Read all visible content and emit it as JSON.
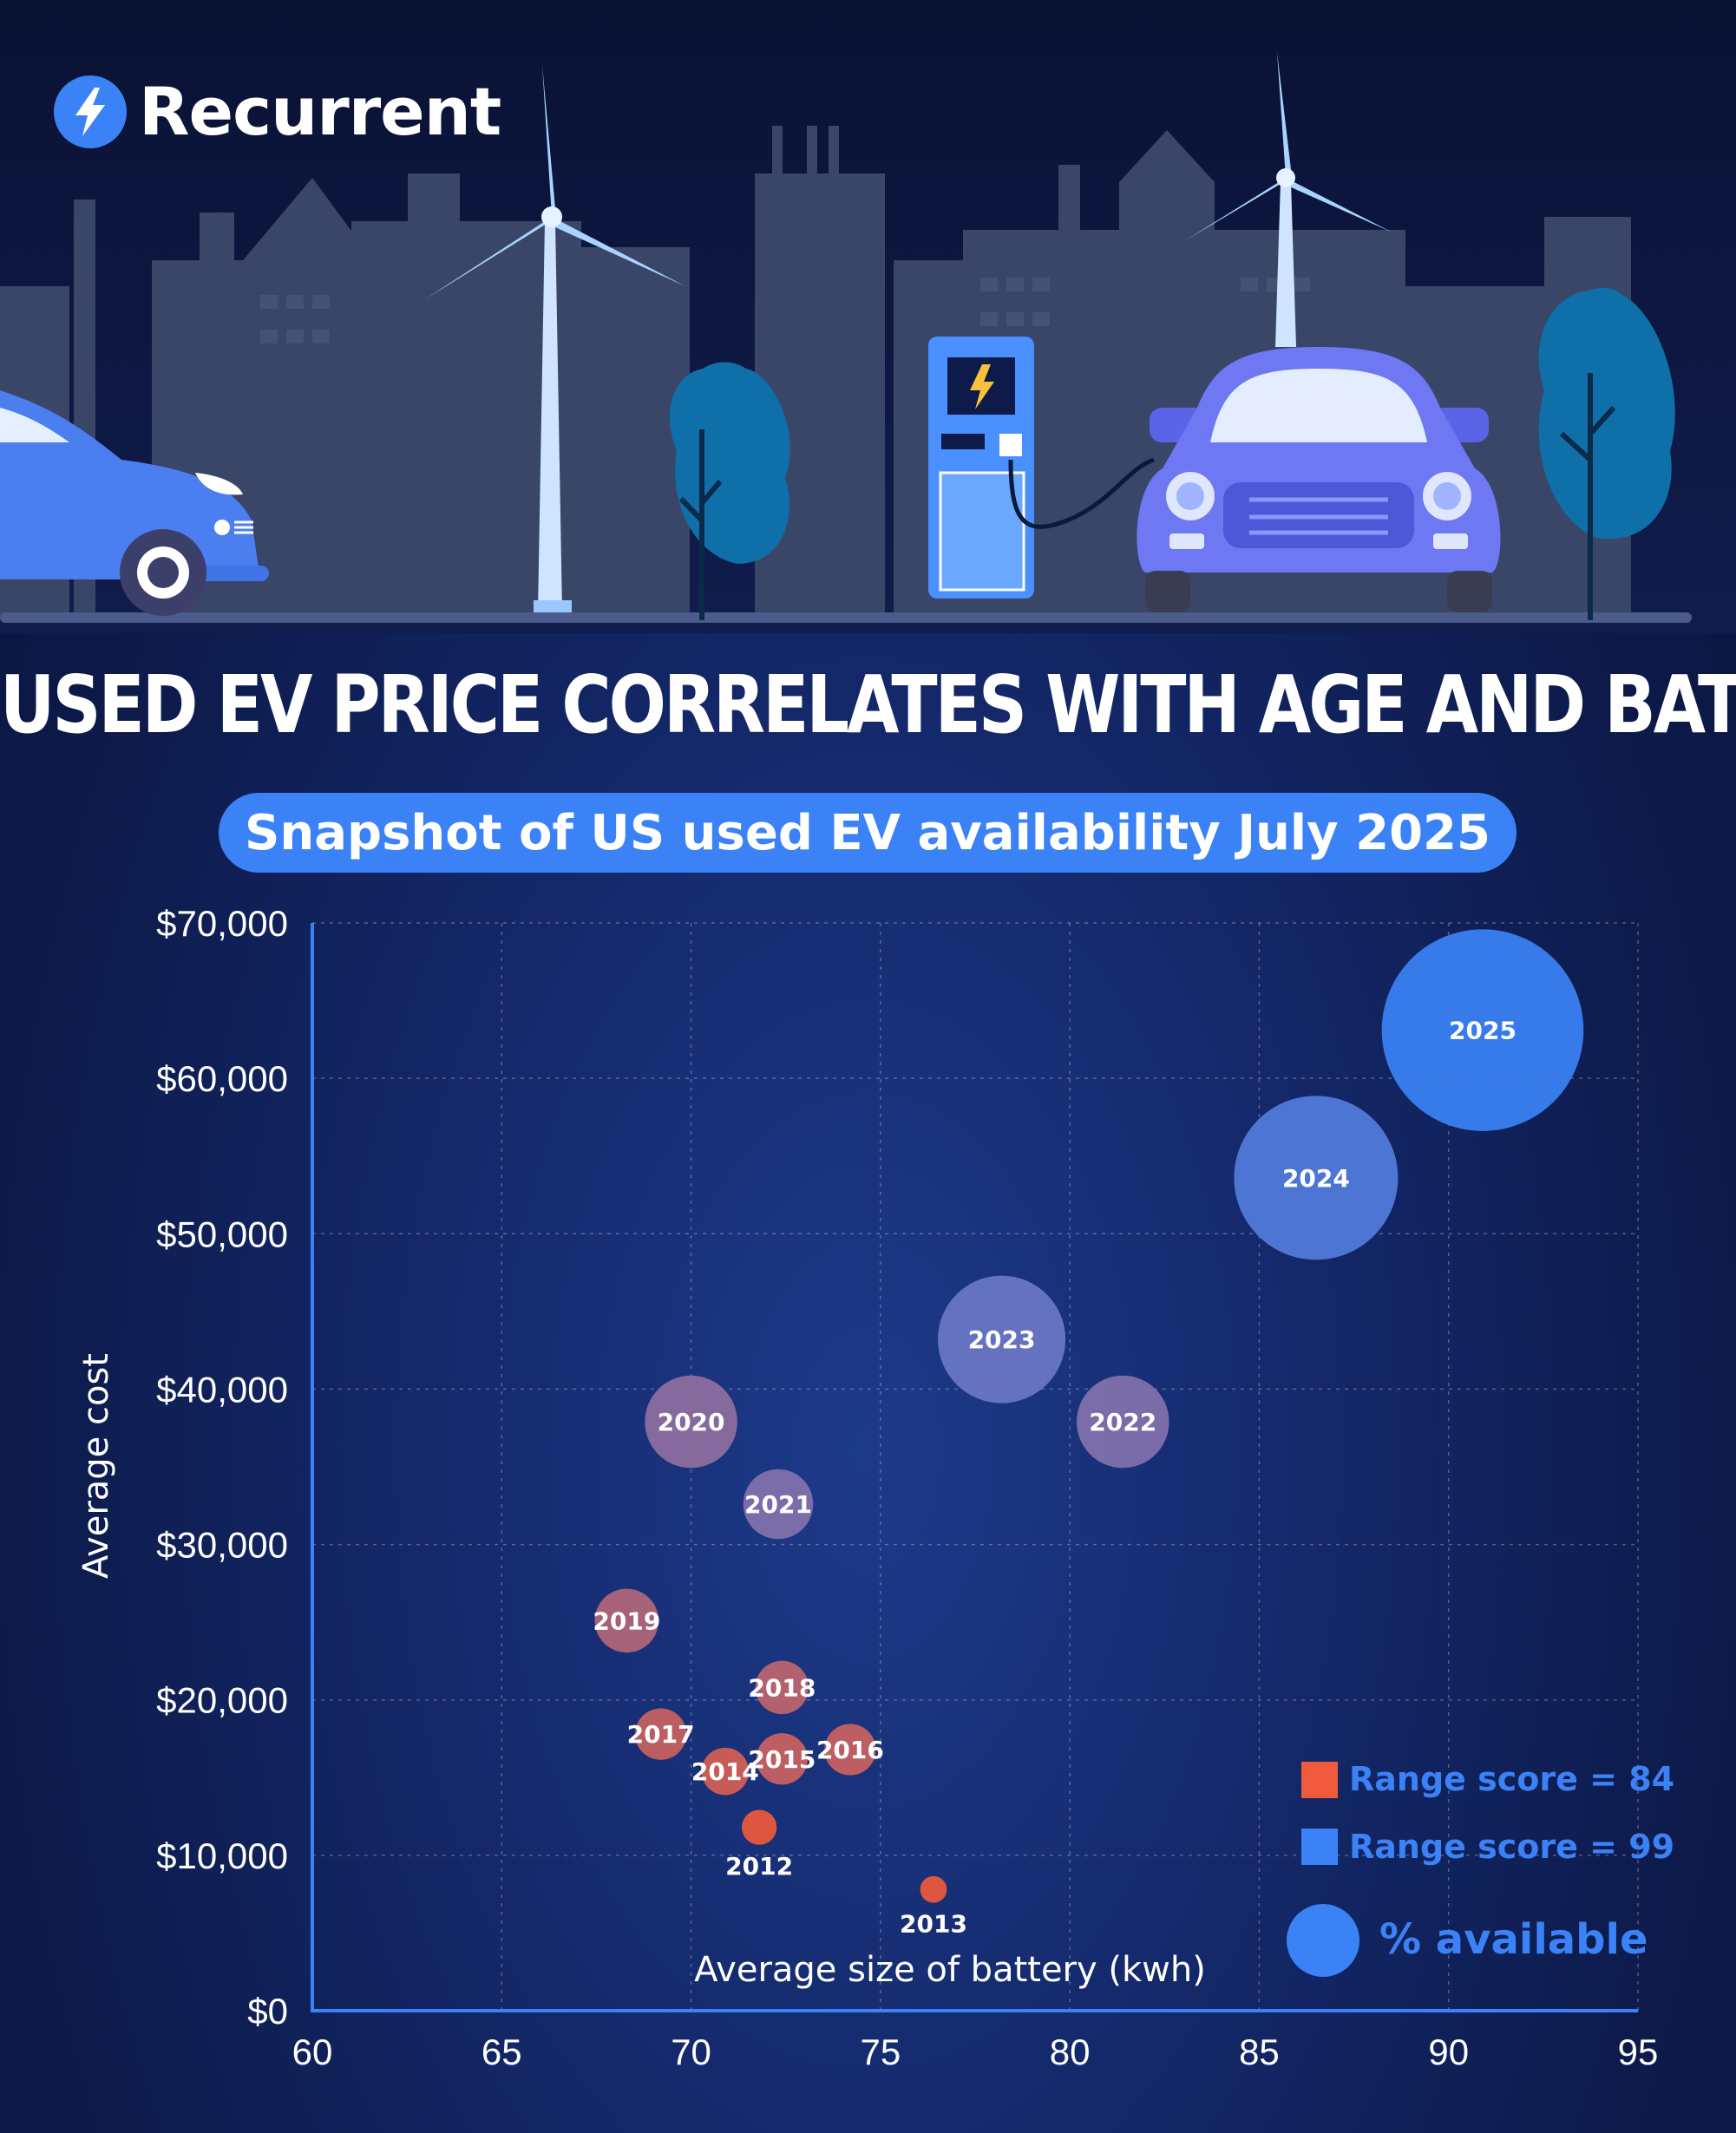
{
  "brand": {
    "name": "Recurrent"
  },
  "headline": "USED EV PRICE CORRELATES WITH AGE AND BATTERY SIZE",
  "subtitle": "Snapshot of US used EV availability July 2025",
  "colors": {
    "range84": "#ef5a3c",
    "range99": "#3b82f6",
    "axis": "#3b82f6"
  },
  "chart_data": {
    "type": "scatter",
    "title": "Snapshot of US used EV availability July 2025",
    "xlabel": "Average size of battery (kwh)",
    "ylabel": "Average cost",
    "xlim": [
      60,
      95
    ],
    "ylim": [
      0,
      70000
    ],
    "xticks": [
      "60",
      "65",
      "70",
      "75",
      "80",
      "85",
      "90",
      "95"
    ],
    "yticks": [
      "$0",
      "$10,000",
      "$20,000",
      "$30,000",
      "$40,000",
      "$50,000",
      "$60,000",
      "$70,000"
    ],
    "grid": true,
    "legend": {
      "placement": "bottom-right",
      "entries": [
        {
          "label": "Range score = 84",
          "color": "#ef5a3c"
        },
        {
          "label": "Range score = 99",
          "color": "#3b82f6"
        }
      ],
      "size_label": "% available"
    },
    "points": [
      {
        "label": "2012",
        "x": 71.8,
        "y": 11800,
        "availability": 0.6,
        "range_score": 84
      },
      {
        "label": "2013",
        "x": 76.4,
        "y": 7800,
        "availability": 0.35,
        "range_score": 84
      },
      {
        "label": "2014",
        "x": 70.9,
        "y": 15400,
        "availability": 1.1,
        "range_score": 86
      },
      {
        "label": "2015",
        "x": 72.4,
        "y": 16200,
        "availability": 1.3,
        "range_score": 87
      },
      {
        "label": "2016",
        "x": 74.2,
        "y": 16800,
        "availability": 1.3,
        "range_score": 87
      },
      {
        "label": "2017",
        "x": 69.2,
        "y": 17800,
        "availability": 1.3,
        "range_score": 87
      },
      {
        "label": "2018",
        "x": 72.4,
        "y": 20800,
        "availability": 1.4,
        "range_score": 88
      },
      {
        "label": "2019",
        "x": 68.3,
        "y": 25100,
        "availability": 2.0,
        "range_score": 89
      },
      {
        "label": "2020",
        "x": 70.0,
        "y": 37900,
        "availability": 4.2,
        "range_score": 92
      },
      {
        "label": "2021",
        "x": 72.3,
        "y": 32600,
        "availability": 2.4,
        "range_score": 93
      },
      {
        "label": "2022",
        "x": 81.4,
        "y": 37900,
        "availability": 4.2,
        "range_score": 93
      },
      {
        "label": "2023",
        "x": 78.2,
        "y": 43200,
        "availability": 8.0,
        "range_score": 95
      },
      {
        "label": "2024",
        "x": 86.5,
        "y": 53600,
        "availability": 13.2,
        "range_score": 97
      },
      {
        "label": "2025",
        "x": 90.9,
        "y": 63100,
        "availability": 20.0,
        "range_score": 99
      }
    ]
  }
}
